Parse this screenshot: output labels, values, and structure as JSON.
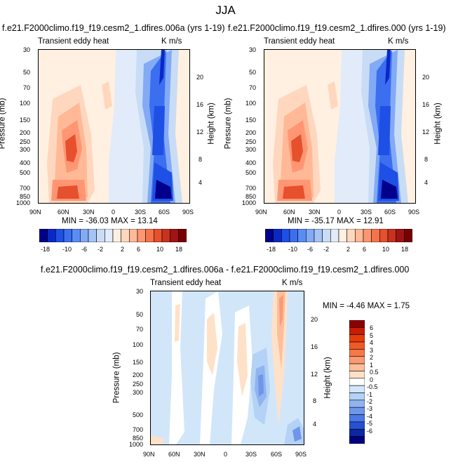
{
  "figure": {
    "title": "JJA",
    "panel1": {
      "case_title": "f.e21.F2000climo.f19_f19.cesm2_1.dfires.006a (yrs 1-19)",
      "left_label": "Transient eddy heat",
      "right_label": "K m/s",
      "stats": "MIN = -36.03   MAX = 13.14"
    },
    "panel2": {
      "case_title": "f.e21.F2000climo.f19_f19.cesm2_1.dfires.000 (yrs 1-19)",
      "left_label": "Transient eddy heat",
      "right_label": "K m/s",
      "stats": "MIN = -35.17   MAX = 12.91"
    },
    "panel3": {
      "case_title": "f.e21.F2000climo.f19_f19.cesm2_1.dfires.006a - f.e21.F2000climo.f19_f19.cesm2_1.dfires.000",
      "left_label": "Transient eddy heat",
      "right_label": "K m/s",
      "stats": "MIN = -4.46   MAX =  1.75"
    }
  },
  "chart_data": [
    {
      "type": "heatmap",
      "panel": "top-left",
      "ylabel": "Pressure (mb)",
      "y2label": "Height (km)",
      "x_ticks": [
        "90N",
        "60N",
        "30N",
        "0",
        "30S",
        "60S",
        "90S"
      ],
      "y_ticks": [
        "30",
        "50",
        "70",
        "100",
        "150",
        "200",
        "250",
        "300",
        "400",
        "500",
        "700",
        "850",
        "1000"
      ],
      "y2_ticks": [
        "20",
        "16",
        "12",
        "8",
        "4"
      ],
      "colorbar_levels": [
        "-18",
        "-10",
        "-6",
        "-2",
        "2",
        "6",
        "10",
        "18"
      ],
      "colorbar_colors": [
        "#00008b",
        "#0a28c8",
        "#1e50e6",
        "#3c6ef0",
        "#5a8cf5",
        "#82aaf5",
        "#a5c3f5",
        "#c8dcf5",
        "#e1ebfa",
        "#fff0e1",
        "#ffd7be",
        "#ffb996",
        "#ff9673",
        "#f5734b",
        "#e6502d",
        "#c8321e",
        "#a01414",
        "#780000"
      ],
      "min": -36.03,
      "max": 13.14
    },
    {
      "type": "heatmap",
      "panel": "top-right",
      "ylabel": "Pressure (mb)",
      "y2label": "Height (km)",
      "x_ticks": [
        "90N",
        "60N",
        "30N",
        "0",
        "30S",
        "60S",
        "90S"
      ],
      "y_ticks": [
        "30",
        "50",
        "70",
        "100",
        "150",
        "200",
        "250",
        "300",
        "400",
        "500",
        "700",
        "850",
        "1000"
      ],
      "y2_ticks": [
        "20",
        "16",
        "12",
        "8",
        "4"
      ],
      "colorbar_levels": [
        "-18",
        "-10",
        "-6",
        "-2",
        "2",
        "6",
        "10",
        "18"
      ],
      "min": -35.17,
      "max": 12.91
    },
    {
      "type": "heatmap",
      "panel": "bottom-difference",
      "ylabel": "Pressure (mb)",
      "y2label": "Height (km)",
      "x_ticks": [
        "90N",
        "60N",
        "30N",
        "0",
        "30S",
        "60S",
        "90S"
      ],
      "y_ticks": [
        "30",
        "50",
        "70",
        "100",
        "150",
        "200",
        "250",
        "300",
        "500",
        "700",
        "850",
        "1000"
      ],
      "y2_ticks": [
        "20",
        "16",
        "12",
        "8",
        "4"
      ],
      "colorbar_levels": [
        "6",
        "5",
        "4",
        "3",
        "2",
        "1",
        "0.5",
        "0",
        "-0.5",
        "-1",
        "-2",
        "-3",
        "-4",
        "-5",
        "-6"
      ],
      "colorbar_colors": [
        "#8b0000",
        "#c81e00",
        "#e63c0a",
        "#f05a28",
        "#f57846",
        "#fa9a73",
        "#ffbe9b",
        "#ffe1c8",
        "#ffffff",
        "#d2e6fa",
        "#b4d2f5",
        "#91b4f0",
        "#6e96eb",
        "#4b78e6",
        "#2850d2",
        "#0a28a0",
        "#000080"
      ],
      "min": -4.46,
      "max": 1.75
    }
  ]
}
